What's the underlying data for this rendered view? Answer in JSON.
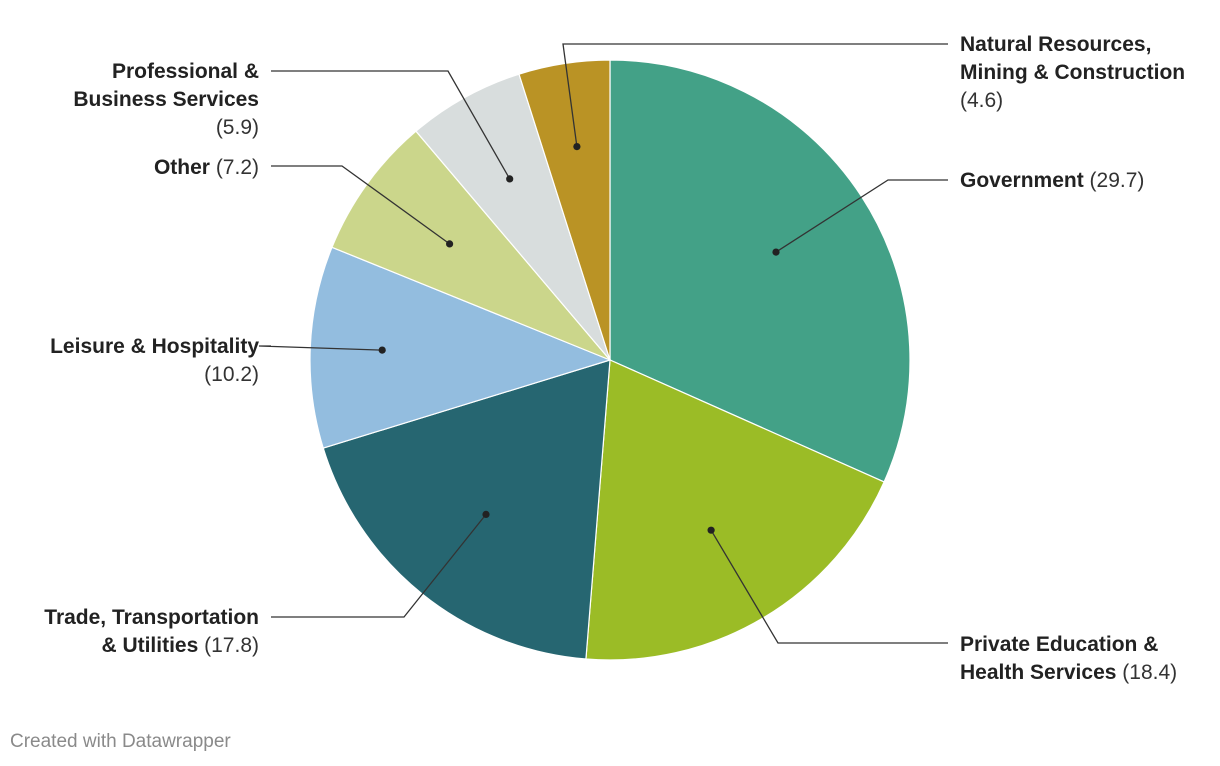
{
  "chart_data": {
    "type": "pie",
    "slices": [
      {
        "name": "Government",
        "value": 29.7,
        "color": "#43a187",
        "label_lines": [
          "Government"
        ],
        "value_text": "(29.7)"
      },
      {
        "name": "Private Education & Health Services",
        "value": 18.4,
        "color": "#9bbc26",
        "label_lines": [
          "Private Education &",
          "Health Services"
        ],
        "value_text": "(18.4)"
      },
      {
        "name": "Trade, Transportation & Utilities",
        "value": 17.8,
        "color": "#266671",
        "label_lines": [
          "Trade, Transportation",
          "& Utilities"
        ],
        "value_text": "(17.8)"
      },
      {
        "name": "Leisure & Hospitality",
        "value": 10.2,
        "color": "#93bddf",
        "label_lines": [
          "Leisure & Hospitality"
        ],
        "value_text": "(10.2)"
      },
      {
        "name": "Other",
        "value": 7.2,
        "color": "#cbd68b",
        "label_lines": [
          "Other"
        ],
        "value_text": "(7.2)"
      },
      {
        "name": "Professional & Business Services",
        "value": 5.9,
        "color": "#d8dddd",
        "label_lines": [
          "Professional &",
          "Business Services"
        ],
        "value_text": "(5.9)"
      },
      {
        "name": "Natural Resources, Mining & Construction",
        "value": 4.6,
        "color": "#ba9325",
        "label_lines": [
          "Natural Resources,",
          "Mining & Construction"
        ],
        "value_text": "(4.6)"
      }
    ],
    "legend": "none"
  },
  "footer": {
    "credit": "Created with Datawrapper"
  }
}
